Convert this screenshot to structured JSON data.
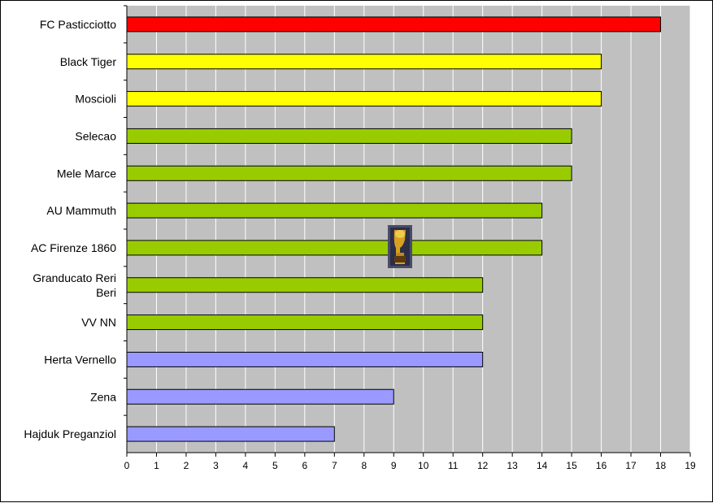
{
  "chart_data": {
    "type": "bar",
    "orientation": "horizontal",
    "categories": [
      "FC Pasticciotto",
      "Black Tiger",
      "Moscioli",
      "Selecao",
      "Mele Marce",
      "AU Mammuth",
      "AC Firenze 1860",
      "Granducato Reri Beri",
      "VV NN",
      "Herta Vernello",
      "Zena",
      "Hajduk Preganziol"
    ],
    "values": [
      18,
      16,
      16,
      15,
      15,
      14,
      14,
      12,
      12,
      12,
      9,
      7
    ],
    "bar_colors": [
      "#ff0000",
      "#ffff00",
      "#ffff00",
      "#99cc00",
      "#99cc00",
      "#99cc00",
      "#99cc00",
      "#99cc00",
      "#99cc00",
      "#9999ff",
      "#9999ff",
      "#9999ff"
    ],
    "xlim": [
      0,
      19
    ],
    "xticks": [
      0,
      1,
      2,
      3,
      4,
      5,
      6,
      7,
      8,
      9,
      10,
      11,
      12,
      13,
      14,
      15,
      16,
      17,
      18,
      19
    ],
    "grid": true,
    "plot_background": "#c0c0c0",
    "gridline_color": "#ffffff",
    "title": "",
    "xlabel": "",
    "ylabel": "",
    "legend": "none",
    "annotation_icon": "trophy-icon"
  }
}
